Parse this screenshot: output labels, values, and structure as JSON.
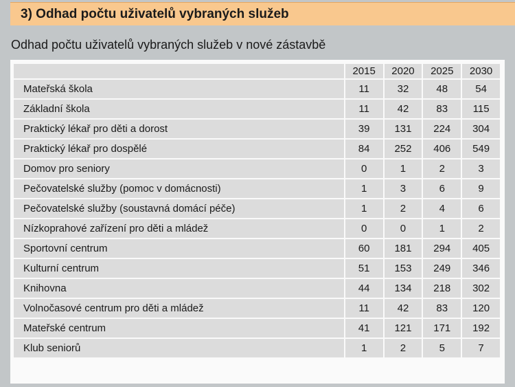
{
  "section": {
    "title": "3) Odhad počtu uživatelů vybraných služeb"
  },
  "table_title": "Odhad počtu uživatelů vybraných služeb v nové zástavbě",
  "table": {
    "years": [
      "2015",
      "2020",
      "2025",
      "2030"
    ],
    "rows": [
      {
        "label": "Mateřská škola",
        "values": [
          "11",
          "32",
          "48",
          "54"
        ]
      },
      {
        "label": "Základní škola",
        "values": [
          "11",
          "42",
          "83",
          "115"
        ]
      },
      {
        "label": "Praktický lékař pro děti a dorost",
        "values": [
          "39",
          "131",
          "224",
          "304"
        ]
      },
      {
        "label": "Praktický lékař pro dospělé",
        "values": [
          "84",
          "252",
          "406",
          "549"
        ]
      },
      {
        "label": "Domov pro seniory",
        "values": [
          "0",
          "1",
          "2",
          "3"
        ]
      },
      {
        "label": "Pečovatelské služby (pomoc v domácnosti)",
        "values": [
          "1",
          "3",
          "6",
          "9"
        ]
      },
      {
        "label": "Pečovatelské služby (soustavná domácí péče)",
        "values": [
          "1",
          "2",
          "4",
          "6"
        ]
      },
      {
        "label": "Nízkoprahové zařízení pro děti a mládež",
        "values": [
          "0",
          "0",
          "1",
          "2"
        ]
      },
      {
        "label": "Sportovní centrum",
        "values": [
          "60",
          "181",
          "294",
          "405"
        ]
      },
      {
        "label": "Kulturní centrum",
        "values": [
          "51",
          "153",
          "249",
          "346"
        ]
      },
      {
        "label": "Knihovna",
        "values": [
          "44",
          "134",
          "218",
          "302"
        ]
      },
      {
        "label": "Volnočasové centrum pro děti a mládež",
        "values": [
          "11",
          "42",
          "83",
          "120"
        ]
      },
      {
        "label": "Mateřské centrum",
        "values": [
          "41",
          "121",
          "171",
          "192"
        ]
      },
      {
        "label": "Klub seniorů",
        "values": [
          "1",
          "2",
          "5",
          "7"
        ]
      }
    ]
  }
}
